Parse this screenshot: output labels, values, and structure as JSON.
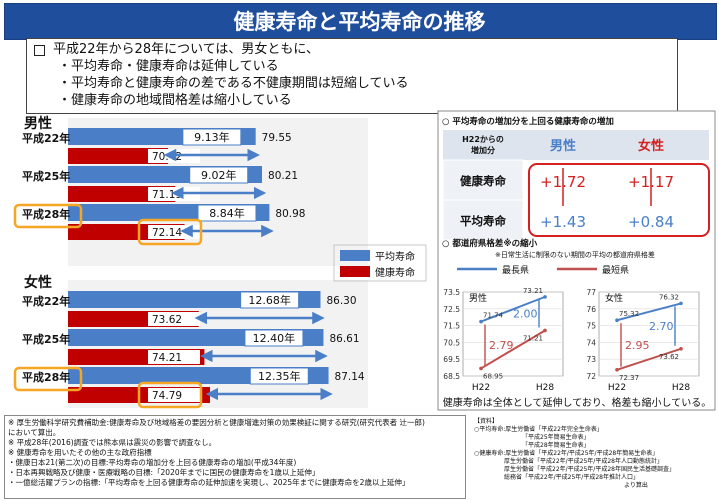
{
  "title": "健康寿命と平均寿命の推移",
  "summary": {
    "lines": [
      "平成22年から28年については、男女ともに、",
      "・平均寿命・健康寿命は延伸している",
      "・平均寿命と健康寿命の差である不健康期間は短縮している",
      "・健康寿命の地域間格差は縮小している"
    ]
  },
  "colors": {
    "title_bg": "#1f4e9c",
    "average_bar": "#4a7fc8",
    "healthy_bar": "#c00000",
    "gap_arrow": "#4a7fc8",
    "highlight": "#f5a623",
    "max_line": "#4a7fc8",
    "min_line": "#c0504d",
    "red_box": "#d32020"
  },
  "chart_data": [
    {
      "type": "bar",
      "series": [
        {
          "name": "平均寿命",
          "color": "#4a7fc8"
        },
        {
          "name": "健康寿命",
          "color": "#c00000"
        }
      ],
      "groups": [
        {
          "label": "男性",
          "rows": [
            {
              "year": "平成22年",
              "average": 79.55,
              "healthy": 70.42,
              "gap": "9.13年",
              "highlight": false
            },
            {
              "year": "平成25年",
              "average": 80.21,
              "healthy": 71.19,
              "gap": "9.02年",
              "highlight": false
            },
            {
              "year": "平成28年",
              "average": 80.98,
              "healthy": 72.14,
              "gap": "8.84年",
              "highlight": true
            }
          ]
        },
        {
          "label": "女性",
          "rows": [
            {
              "year": "平成22年",
              "average": 86.3,
              "healthy": 73.62,
              "gap": "12.68年",
              "highlight": false
            },
            {
              "year": "平成25年",
              "average": 86.61,
              "healthy": 74.21,
              "gap": "12.40年",
              "highlight": false
            },
            {
              "year": "平成28年",
              "average": 87.14,
              "healthy": 74.79,
              "gap": "12.35年",
              "highlight": true
            }
          ]
        }
      ],
      "legend": [
        "平均寿命",
        "健康寿命"
      ]
    },
    {
      "type": "table",
      "title": "○ 平均寿命の増加分を上回る健康寿命の増加",
      "corner_header": [
        "H22からの",
        "増加分"
      ],
      "columns": [
        "男性",
        "女性"
      ],
      "rows": [
        {
          "label": "健康寿命",
          "values": [
            "+1.72",
            "+1.17"
          ]
        },
        {
          "label": "平均寿命",
          "values": [
            "+1.43",
            "+0.84"
          ]
        }
      ]
    },
    {
      "type": "line",
      "title": "○ 都道府県格差※の縮小",
      "subtitle": "※日常生活に制限のない期間の平均の都道府県格差",
      "legend": [
        "最長県",
        "最短県"
      ],
      "panels": [
        {
          "name": "男性",
          "x": [
            "H22",
            "H28"
          ],
          "ylim": [
            68.5,
            73.5
          ],
          "yticks": [
            "68.5",
            "69.5",
            "70.5",
            "71.5",
            "72.5",
            "73.5"
          ],
          "series": [
            {
              "name": "最長県",
              "values": [
                71.74,
                73.21
              ]
            },
            {
              "name": "最短県",
              "values": [
                68.95,
                71.21
              ]
            }
          ],
          "gaps": {
            "H22": "2.79",
            "H28": "2.00"
          }
        },
        {
          "name": "女性",
          "x": [
            "H22",
            "H28"
          ],
          "ylim": [
            72,
            77
          ],
          "yticks": [
            "72",
            "73",
            "74",
            "75",
            "76",
            "77"
          ],
          "series": [
            {
              "name": "最長県",
              "values": [
                75.32,
                76.32
              ]
            },
            {
              "name": "最短県",
              "values": [
                72.37,
                73.62
              ]
            }
          ],
          "gaps": {
            "H22": "2.95",
            "H28": "2.70"
          }
        }
      ],
      "caption": "健康寿命は全体として延伸しており、格差も縮小している。"
    }
  ],
  "footnotes": [
    "※ 厚生労働科学研究費補助金:健康寿命及び地域格差の要因分析と健康増進対策の効果検証に関する研究(研究代表者 辻一郎)",
    "において算出。",
    "※ 平成28年(2016)調査では熊本県は震災の影響で調査なし。",
    "※ 健康寿命を用いたその他の主な政府指標",
    "・健康日本21(第二次)の目標:平均寿命の増加分を上回る健康寿命の増加(平成34年度)",
    "・日本再興戦略及び健康・医療戦略の目標:「2020年までに国民の健康寿命を1歳以上延伸」",
    "・一億総活躍プランの指標:「平均寿命を上回る健康寿命の延伸加速を実現し、2025年までに健康寿命を2歳以上延伸」"
  ],
  "sources": [
    "【資料】",
    "○平均寿命:厚生労働省「平成22年完全生命表」",
    "「平成25年簡易生命表」",
    "「平成28年簡易生命表」",
    "○健康寿命:厚生労働省「平成22年/平成25年/平成28年簡易生命表」",
    "厚生労働省「平成22年/平成25年/平成28年人口動態統計」",
    "厚生労働省「平成22年/平成25年/平成28年国民生活基礎調査」",
    "総務省「平成22年/平成25年/平成28年推計人口」",
    "より算出"
  ]
}
